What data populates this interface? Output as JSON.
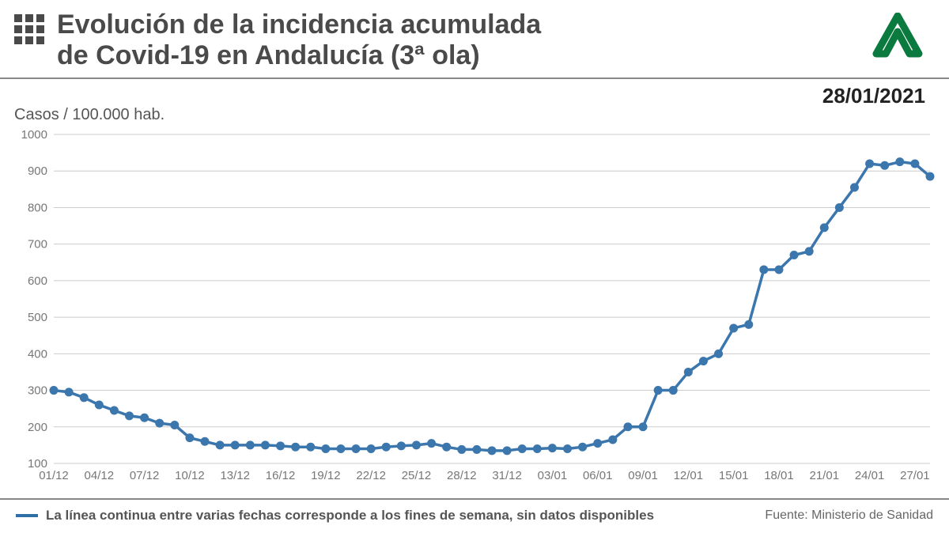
{
  "header": {
    "title_line1": "Evolución de la incidencia acumulada",
    "title_line2": "de Covid-19 en Andalucía (3ª ola)",
    "date": "28/01/2021"
  },
  "ylabel": "Casos / 100.000 hab.",
  "chart": {
    "type": "line",
    "line_color": "#3b76ad",
    "line_width": 3.5,
    "marker_radius": 5.5,
    "marker_fill": "#3b76ad",
    "background_color": "#ffffff",
    "grid_color": "#cccccc",
    "axis_label_color": "#777777",
    "ylim": [
      100,
      1000
    ],
    "ytick_step": 100,
    "yticks": [
      100,
      200,
      300,
      400,
      500,
      600,
      700,
      800,
      900,
      1000
    ],
    "xticks": [
      "01/12",
      "04/12",
      "07/12",
      "10/12",
      "13/12",
      "16/12",
      "19/12",
      "22/12",
      "25/12",
      "28/12",
      "31/12",
      "03/01",
      "06/01",
      "09/01",
      "12/01",
      "15/01",
      "18/01",
      "21/01",
      "24/01",
      "27/01"
    ],
    "x_points": [
      0,
      1,
      2,
      3,
      4,
      5,
      6,
      7,
      8,
      9,
      10,
      11,
      12,
      13,
      14,
      15,
      16,
      17,
      18,
      19,
      20,
      21,
      22,
      23,
      24,
      25,
      26,
      27,
      28,
      29,
      30,
      31,
      32,
      33,
      34,
      35,
      36,
      37,
      38,
      39,
      40,
      41,
      42,
      43,
      44,
      45,
      46,
      47,
      48,
      49,
      50,
      51,
      52,
      53,
      54,
      55,
      56,
      57,
      58
    ],
    "y_values": [
      300,
      295,
      280,
      260,
      245,
      230,
      225,
      210,
      205,
      170,
      160,
      150,
      150,
      150,
      150,
      148,
      145,
      145,
      140,
      140,
      140,
      140,
      145,
      148,
      150,
      155,
      145,
      138,
      138,
      135,
      135,
      140,
      140,
      142,
      140,
      145,
      155,
      165,
      200,
      200,
      300,
      300,
      350,
      380,
      400,
      470,
      480,
      630,
      630,
      670,
      680,
      745,
      800,
      855,
      920,
      915,
      925,
      920,
      885
    ]
  },
  "footer": {
    "legend_text": "La línea continua entre varias fechas corresponde a los fines de semana, sin datos disponibles",
    "source": "Fuente: Ministerio de Sanidad",
    "legend_color": "#2f6fa7"
  }
}
